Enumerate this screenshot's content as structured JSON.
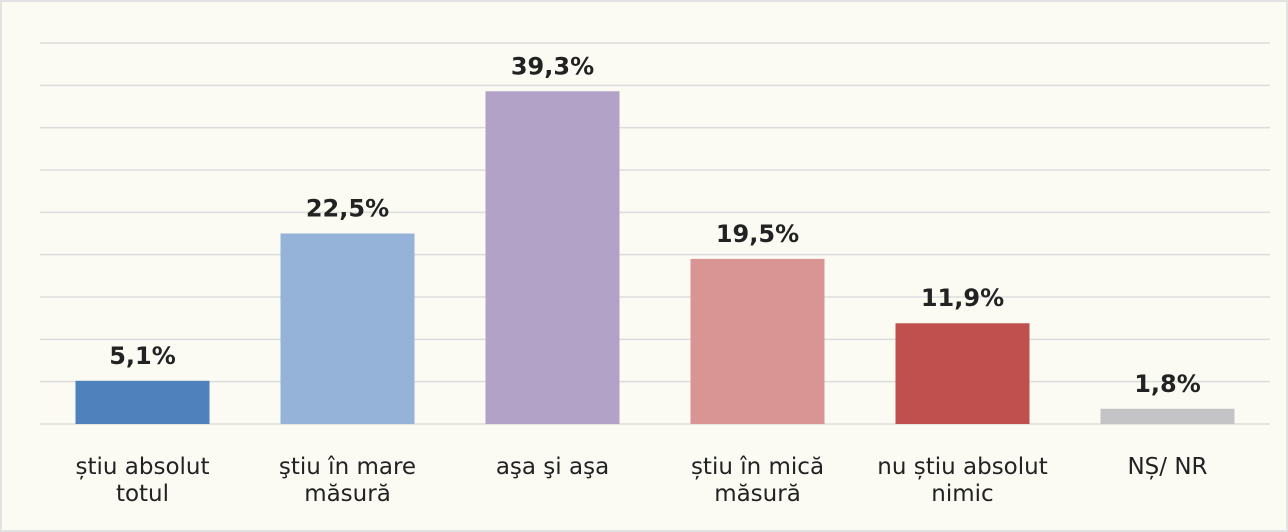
{
  "chart_data": {
    "type": "bar",
    "categories": [
      "știu absolut\ntotul",
      "ştiu în mare\nmăsură",
      "aşa şi aşa",
      "știu în mică\nmăsură",
      "nu știu absolut\nnimic",
      "NȘ/ NR"
    ],
    "values": [
      5.1,
      22.5,
      39.3,
      19.5,
      11.9,
      1.8
    ],
    "value_labels": [
      "5,1%",
      "22,5%",
      "39,3%",
      "19,5%",
      "11,9%",
      "1,8%"
    ],
    "colors": [
      "#4f81bd",
      "#95b3d9",
      "#b3a2c7",
      "#d99594",
      "#c0504d",
      "#c4c4c6"
    ],
    "ylim": [
      0,
      45
    ],
    "yticks": [
      0,
      5,
      10,
      15,
      20,
      25,
      30,
      35,
      40,
      45
    ],
    "grid": true
  }
}
